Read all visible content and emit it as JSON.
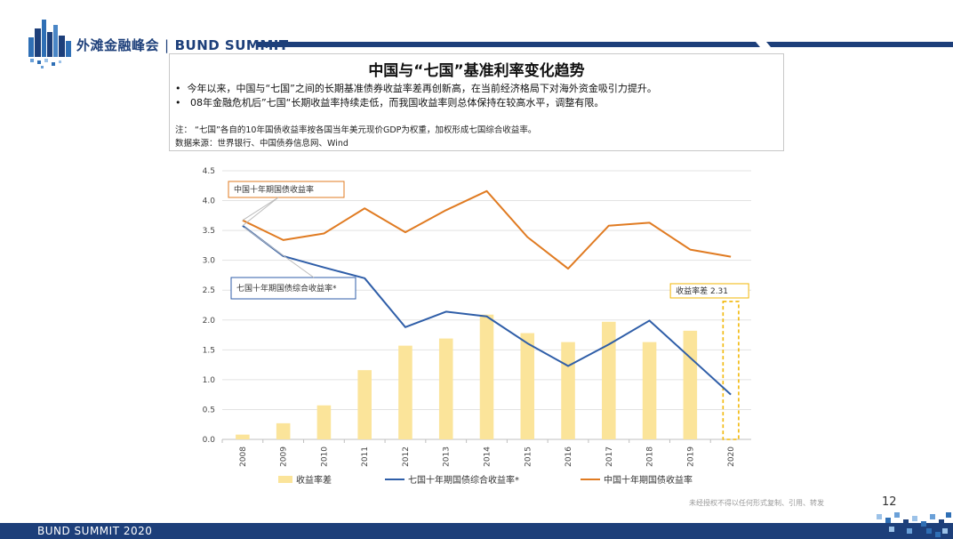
{
  "brand": {
    "cn": "外滩金融峰会",
    "en": "BUND SUMMIT"
  },
  "header": {
    "title": "中国与“七国”基准利率变化趋势",
    "bullets": [
      "今年以来，中国与“七国”之间的长期基准债券收益率差再创新高，在当前经济格局下对海外资金吸引力提升。",
      "08年金融危机后”七国“长期收益率持续走低，而我国收益率则总体保持在较高水平，调整有限。"
    ],
    "note": "注：  “七国”各自的10年国债收益率按各国当年美元现价GDP为权重，加权形成七国综合收益率。",
    "source": "数据来源：世界银行、中国债券信息网、Wind"
  },
  "chart_data": {
    "type": "bar+line",
    "categories": [
      "2008",
      "2009",
      "2010",
      "2011",
      "2012",
      "2013",
      "2014",
      "2015",
      "2016",
      "2017",
      "2018",
      "2019",
      "2020"
    ],
    "yticks": [
      "0.0",
      "0.5",
      "1.0",
      "1.5",
      "2.0",
      "2.5",
      "3.0",
      "3.5",
      "4.0",
      "4.5"
    ],
    "ylim": [
      0,
      4.5
    ],
    "series": [
      {
        "name": "收益率差",
        "kind": "bar",
        "color": "#fbe49a",
        "values": [
          0.08,
          0.27,
          0.57,
          1.16,
          1.57,
          1.69,
          2.09,
          1.78,
          1.63,
          1.97,
          1.63,
          1.82,
          null
        ]
      },
      {
        "name": "七国十年期国债综合收益率*",
        "kind": "line",
        "color": "#2f5ea8",
        "values": [
          3.58,
          3.07,
          2.88,
          2.7,
          1.88,
          2.14,
          2.06,
          1.61,
          1.23,
          1.59,
          1.99,
          1.37,
          0.75
        ]
      },
      {
        "name": "中国十年期国债收益率",
        "kind": "line",
        "color": "#e07b22",
        "values": [
          3.67,
          3.34,
          3.45,
          3.87,
          3.47,
          3.84,
          4.16,
          3.39,
          2.86,
          3.58,
          3.63,
          3.18,
          3.06
        ]
      }
    ],
    "highlight": {
      "category": "2020",
      "label": "收益率差   2.31",
      "value": 2.31
    },
    "annotations": {
      "china": "中国十年期国债收益率",
      "g7": "七国十年期国债综合收益率*"
    },
    "legend_position": "bottom"
  },
  "footer": {
    "text": "BUND SUMMIT 2020",
    "copyright": "未经授权不得以任何形式复制、引用、转发",
    "page": "12"
  }
}
